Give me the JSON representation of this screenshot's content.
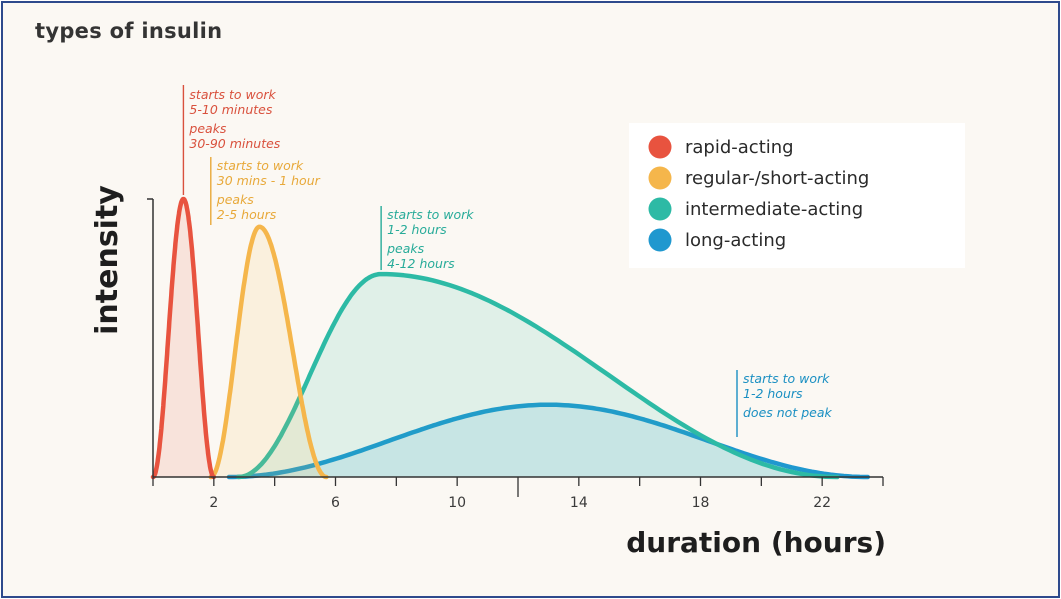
{
  "chart_data": {
    "type": "area",
    "title": "types of insulin",
    "xlabel": "duration (hours)",
    "ylabel": "intensity",
    "xlim": [
      0,
      24
    ],
    "ylim": [
      0,
      1
    ],
    "x_ticks": [
      2,
      6,
      10,
      14,
      18,
      22
    ],
    "grid": false,
    "legend_position": "top-right",
    "series": [
      {
        "name": "rapid-acting",
        "color": "#e8533f",
        "onset_hours": 0,
        "peak_hours": 1,
        "end_hours": 2,
        "peak_intensity": 1.0,
        "annotation": [
          "starts to work",
          "5-10 minutes",
          "peaks",
          "30-90 minutes"
        ]
      },
      {
        "name": "regular-/short-acting",
        "color": "#f5b64b",
        "onset_hours": 1.9,
        "peak_hours": 3.5,
        "end_hours": 5.7,
        "peak_intensity": 0.9,
        "annotation": [
          "starts to work",
          "30 mins - 1 hour",
          "peaks",
          "2-5 hours"
        ]
      },
      {
        "name": "intermediate-acting",
        "color": "#2dbaa5",
        "onset_hours": 2.8,
        "peak_hours": 7.5,
        "end_hours": 22.5,
        "peak_intensity": 0.73,
        "annotation": [
          "starts to work",
          "1-2 hours",
          "peaks",
          "4-12 hours"
        ]
      },
      {
        "name": "long-acting",
        "color": "#1f98cf",
        "onset_hours": 2.5,
        "peak_hours": 13,
        "end_hours": 23.5,
        "peak_intensity": 0.26,
        "annotation": [
          "starts to work",
          "1-2 hours",
          "does not peak"
        ]
      }
    ]
  }
}
